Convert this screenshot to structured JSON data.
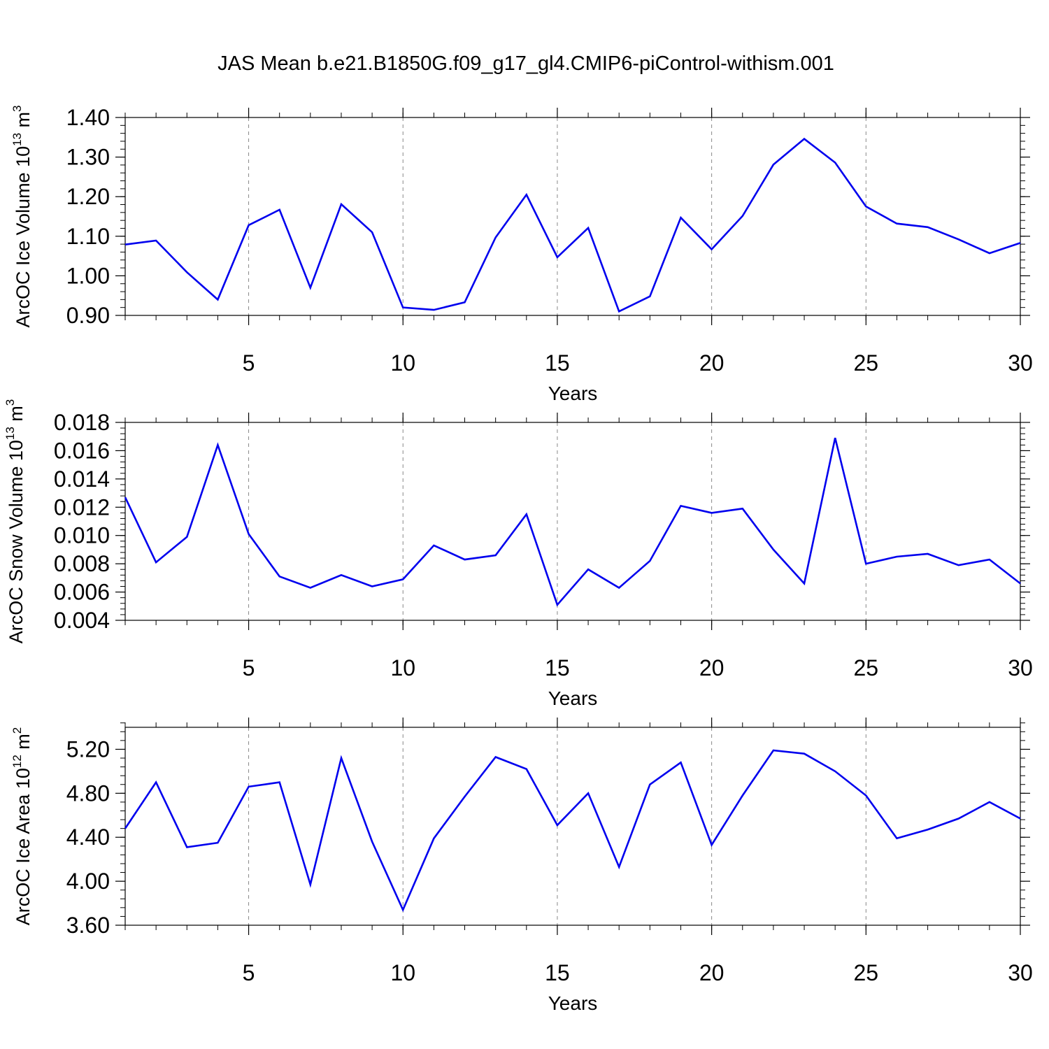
{
  "title": "JAS Mean b.e21.B1850G.f09_g17_gl4.CMIP6-piControl-withism.001",
  "line_color": "#0000ee",
  "chart_data": [
    {
      "type": "line",
      "xlabel": "Years",
      "ylabel_main": "ArcOC Ice Volume 10",
      "ylabel_exp": "13",
      "ylabel_unit": " m",
      "ylabel_unit_exp": "3",
      "xlim": [
        1,
        30
      ],
      "ylim": [
        0.9,
        1.4
      ],
      "x_ticks": [
        5,
        10,
        15,
        20,
        25,
        30
      ],
      "x_tick_labels": [
        "5",
        "10",
        "15",
        "20",
        "25",
        "30"
      ],
      "y_ticks": [
        0.9,
        1.0,
        1.1,
        1.2,
        1.3,
        1.4
      ],
      "y_tick_labels": [
        "0.90",
        "1.00",
        "1.10",
        "1.20",
        "1.30",
        "1.40"
      ],
      "y_minor_step": 0.02,
      "grid": "vertical dashed at major x ticks",
      "x": [
        1,
        2,
        3,
        4,
        5,
        6,
        7,
        8,
        9,
        10,
        11,
        12,
        13,
        14,
        15,
        16,
        17,
        18,
        19,
        20,
        21,
        22,
        23,
        24,
        25,
        26,
        27,
        28,
        29,
        30
      ],
      "values": [
        1.079,
        1.089,
        1.009,
        0.94,
        1.128,
        1.167,
        0.97,
        1.181,
        1.11,
        0.92,
        0.914,
        0.933,
        1.097,
        1.205,
        1.047,
        1.121,
        0.91,
        0.948,
        1.147,
        1.067,
        1.151,
        1.281,
        1.346,
        1.286,
        1.175,
        1.132,
        1.123,
        1.092,
        1.057,
        1.083
      ]
    },
    {
      "type": "line",
      "xlabel": "Years",
      "ylabel_main": "ArcOC Snow Volume 10",
      "ylabel_exp": "13",
      "ylabel_unit": " m",
      "ylabel_unit_exp": "3",
      "xlim": [
        1,
        30
      ],
      "ylim": [
        0.004,
        0.018
      ],
      "x_ticks": [
        5,
        10,
        15,
        20,
        25,
        30
      ],
      "x_tick_labels": [
        "5",
        "10",
        "15",
        "20",
        "25",
        "30"
      ],
      "y_ticks": [
        0.004,
        0.006,
        0.008,
        0.01,
        0.012,
        0.014,
        0.016,
        0.018
      ],
      "y_tick_labels": [
        "0.004",
        "0.006",
        "0.008",
        "0.010",
        "0.012",
        "0.014",
        "0.016",
        "0.018"
      ],
      "y_minor_step": 0.0004,
      "grid": "vertical dashed at major x ticks",
      "x": [
        1,
        2,
        3,
        4,
        5,
        6,
        7,
        8,
        9,
        10,
        11,
        12,
        13,
        14,
        15,
        16,
        17,
        18,
        19,
        20,
        21,
        22,
        23,
        24,
        25,
        26,
        27,
        28,
        29,
        30
      ],
      "values": [
        0.0127,
        0.0081,
        0.0099,
        0.0164,
        0.0101,
        0.0071,
        0.0063,
        0.0072,
        0.0064,
        0.0069,
        0.0093,
        0.0083,
        0.0086,
        0.0115,
        0.0051,
        0.0076,
        0.0063,
        0.0082,
        0.0121,
        0.0116,
        0.0119,
        0.009,
        0.0066,
        0.0169,
        0.008,
        0.0085,
        0.0087,
        0.0079,
        0.0083,
        0.0066
      ]
    },
    {
      "type": "line",
      "xlabel": "Years",
      "ylabel_main": "ArcOC Ice Area 10",
      "ylabel_exp": "12",
      "ylabel_unit": " m",
      "ylabel_unit_exp": "2",
      "xlim": [
        1,
        30
      ],
      "ylim": [
        3.6,
        5.4
      ],
      "x_ticks": [
        5,
        10,
        15,
        20,
        25,
        30
      ],
      "x_tick_labels": [
        "5",
        "10",
        "15",
        "20",
        "25",
        "30"
      ],
      "y_ticks": [
        3.6,
        4.0,
        4.4,
        4.8,
        5.2
      ],
      "y_tick_labels": [
        "3.60",
        "4.00",
        "4.40",
        "4.80",
        "5.20"
      ],
      "y_minor_step": 0.08,
      "grid": "vertical dashed at major x ticks",
      "x": [
        1,
        2,
        3,
        4,
        5,
        6,
        7,
        8,
        9,
        10,
        11,
        12,
        13,
        14,
        15,
        16,
        17,
        18,
        19,
        20,
        21,
        22,
        23,
        24,
        25,
        26,
        27,
        28,
        29,
        30
      ],
      "values": [
        4.48,
        4.9,
        4.31,
        4.35,
        4.86,
        4.9,
        3.97,
        5.12,
        4.36,
        3.74,
        4.39,
        4.77,
        5.13,
        5.02,
        4.51,
        4.8,
        4.13,
        4.88,
        5.08,
        4.33,
        4.78,
        5.19,
        5.16,
        5.0,
        4.78,
        4.39,
        4.47,
        4.57,
        4.72,
        4.57
      ]
    }
  ]
}
